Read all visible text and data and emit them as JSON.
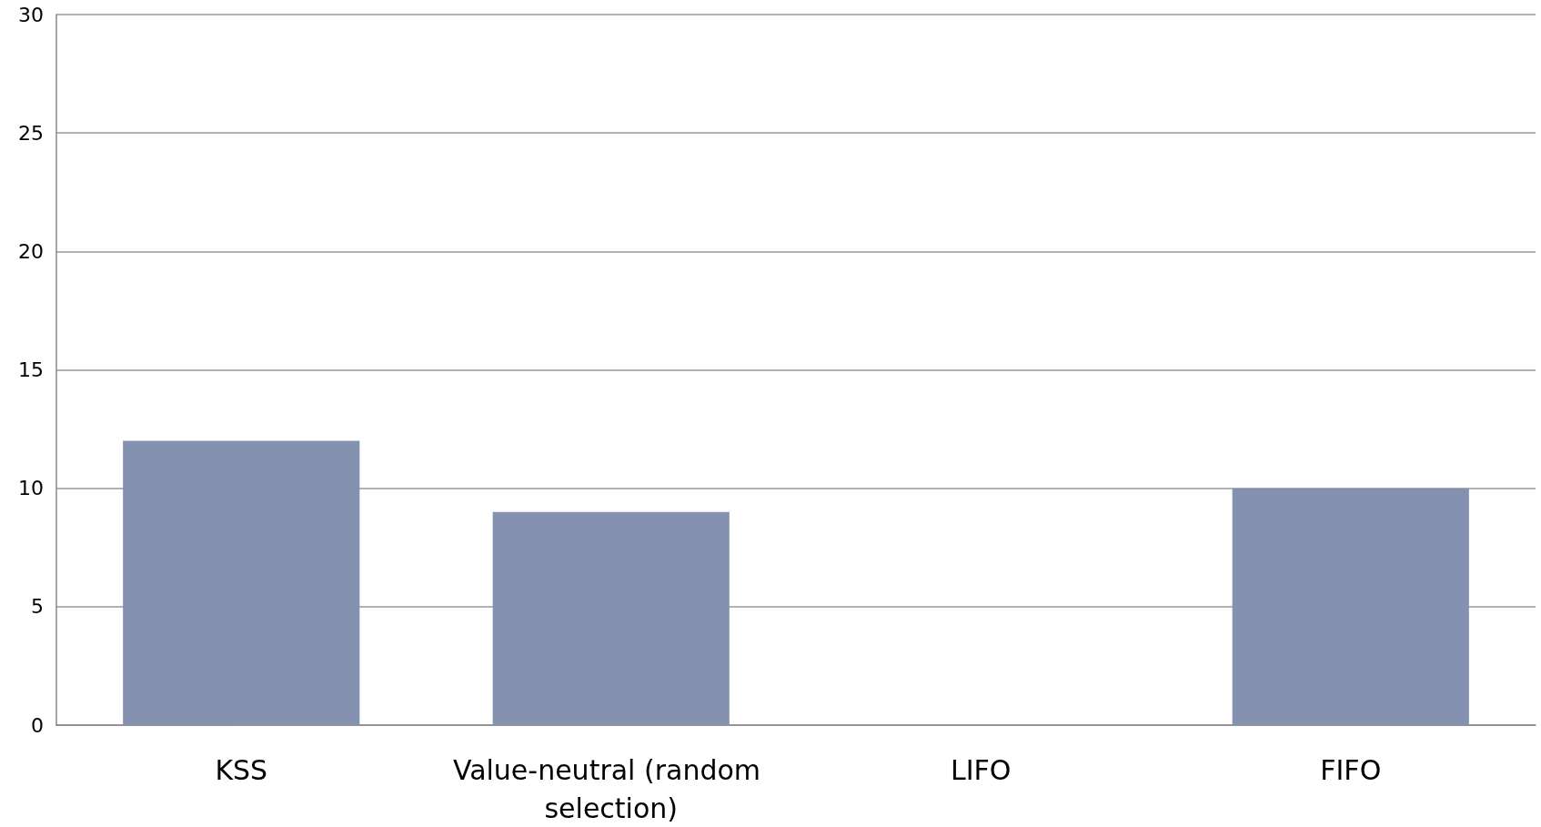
{
  "chart_data": {
    "type": "bar",
    "categories": [
      "KSS",
      "Value-neutral (random selection)",
      "LIFO",
      "FIFO"
    ],
    "values": [
      12,
      9,
      0,
      10
    ],
    "color": "#8591b1",
    "ylim": [
      0,
      30
    ],
    "yticks": [
      0,
      5,
      10,
      15,
      20,
      25,
      30
    ],
    "grid": "y"
  }
}
